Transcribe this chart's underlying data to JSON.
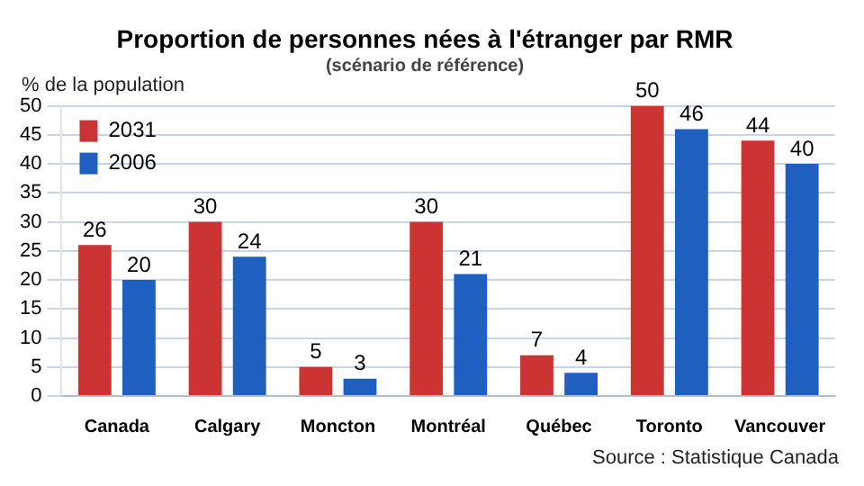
{
  "chart_data": {
    "type": "bar",
    "title": "Proportion de personnes nées à l'étranger par RMR",
    "subtitle": "(scénario de référence)",
    "ylabel": "% de la population",
    "categories": [
      "Canada",
      "Calgary",
      "Moncton",
      "Montréal",
      "Québec",
      "Toronto",
      "Vancouver"
    ],
    "series": [
      {
        "name": "2031",
        "color": "#cc3333",
        "values": [
          26,
          30,
          5,
          30,
          7,
          50,
          44
        ]
      },
      {
        "name": "2006",
        "color": "#1f5fbf",
        "values": [
          20,
          24,
          3,
          21,
          4,
          46,
          40
        ]
      }
    ],
    "ylim": [
      0,
      50
    ],
    "yticks": [
      0,
      5,
      10,
      15,
      20,
      25,
      30,
      35,
      40,
      45,
      50
    ],
    "grid": "y",
    "legend": "top left",
    "data_labels": true,
    "annotations": [
      "Source : Statistique Canada"
    ]
  }
}
